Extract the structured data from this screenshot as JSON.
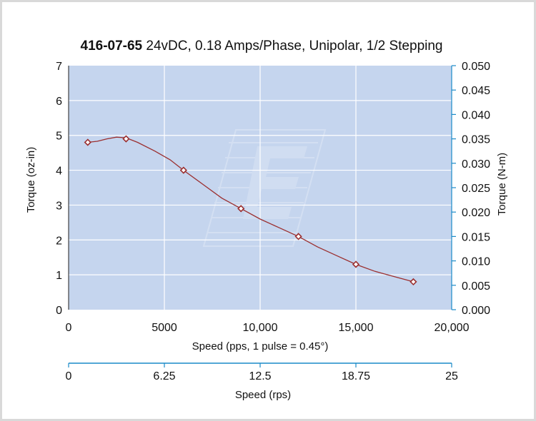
{
  "chart_data": {
    "type": "line",
    "title_bold": "416-07-65",
    "title_rest": " 24vDC, 0.18 Amps/Phase, Unipolar, 1/2 Stepping",
    "xlabel": "Speed (pps, 1 pulse = 0.45°)",
    "ylabel_left": "Torque (oz-in)",
    "ylabel_right": "Torque (N-m)",
    "xlabel_secondary": "Speed (rps)",
    "xlim": [
      0,
      20000
    ],
    "ylim_left": [
      0,
      7
    ],
    "ylim_right": [
      0,
      0.05
    ],
    "x_ticks": [
      "0",
      "5000",
      "10,000",
      "15,000",
      "20,000"
    ],
    "y_ticks_left": [
      "0",
      "1",
      "2",
      "3",
      "4",
      "5",
      "6",
      "7"
    ],
    "y_ticks_right": [
      "0.000",
      "0.005",
      "0.010",
      "0.015",
      "0.020",
      "0.025",
      "0.030",
      "0.035",
      "0.040",
      "0.045",
      "0.050"
    ],
    "x2_ticks": [
      "0",
      "6.25",
      "12.5",
      "18.75",
      "25"
    ],
    "grid": true,
    "plot_bg": "#c5d5ee",
    "series": [
      {
        "color": "#9b2f2f",
        "points": [
          {
            "x": 1000,
            "y": 4.8
          },
          {
            "x": 3000,
            "y": 4.9
          },
          {
            "x": 6000,
            "y": 4.0
          },
          {
            "x": 9000,
            "y": 2.9
          },
          {
            "x": 12000,
            "y": 2.1
          },
          {
            "x": 15000,
            "y": 1.3
          },
          {
            "x": 18000,
            "y": 0.8
          }
        ],
        "curve": [
          [
            1000,
            4.8
          ],
          [
            1500,
            4.83
          ],
          [
            2000,
            4.9
          ],
          [
            2500,
            4.95
          ],
          [
            3000,
            4.93
          ],
          [
            3600,
            4.8
          ],
          [
            4500,
            4.55
          ],
          [
            5300,
            4.3
          ],
          [
            6000,
            4.0
          ],
          [
            7000,
            3.6
          ],
          [
            8000,
            3.2
          ],
          [
            9000,
            2.9
          ],
          [
            10000,
            2.6
          ],
          [
            11000,
            2.35
          ],
          [
            12000,
            2.1
          ],
          [
            13000,
            1.8
          ],
          [
            14000,
            1.55
          ],
          [
            15000,
            1.3
          ],
          [
            16000,
            1.1
          ],
          [
            17000,
            0.95
          ],
          [
            18000,
            0.8
          ]
        ]
      }
    ]
  }
}
